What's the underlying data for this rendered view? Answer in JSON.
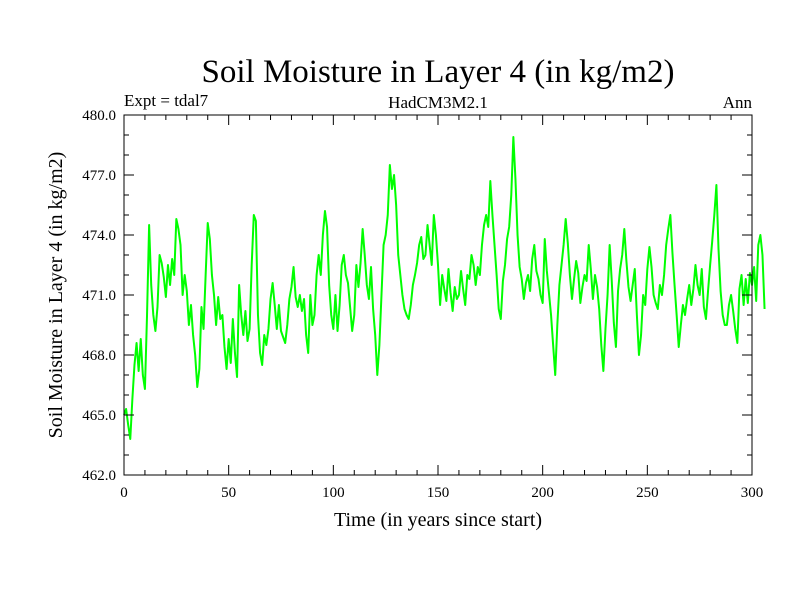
{
  "chart_data": {
    "type": "line",
    "title": "Soil Moisture in Layer 4 (in kg/m2)",
    "subtitle_left": "Expt = tdal7",
    "subtitle_center": "HadCM3M2.1",
    "subtitle_right": "Ann",
    "xlabel": "Time (in years since start)",
    "ylabel": "Soil Moisture in Layer 4 (in kg/m2)",
    "xlim": [
      0,
      300
    ],
    "ylim": [
      462.0,
      480.0
    ],
    "x_ticks": [
      0,
      50,
      100,
      150,
      200,
      250,
      300
    ],
    "x_tick_labels": [
      "0",
      "50",
      "100",
      "150",
      "200",
      "250",
      "300"
    ],
    "y_ticks": [
      462.0,
      465.0,
      468.0,
      471.0,
      474.0,
      477.0,
      480.0
    ],
    "y_tick_labels": [
      "462.0",
      "465.0",
      "468.0",
      "471.0",
      "474.0",
      "477.0",
      "480.0"
    ],
    "grid": false,
    "line_color": "#00ff00",
    "series": [
      {
        "name": "Soil Moisture Layer 4",
        "x_start": 0,
        "x_step": 1,
        "values": [
          465.0,
          465.3,
          464.5,
          463.8,
          465.8,
          467.5,
          468.6,
          467.2,
          468.8,
          467.0,
          466.3,
          470.0,
          474.5,
          471.5,
          470.0,
          469.2,
          470.4,
          473.0,
          472.6,
          471.9,
          470.9,
          472.5,
          471.5,
          472.8,
          472.0,
          474.8,
          474.3,
          473.5,
          471.0,
          472.0,
          471.2,
          469.5,
          470.5,
          469.0,
          468.0,
          466.4,
          467.3,
          470.4,
          469.3,
          472.0,
          474.6,
          473.8,
          472.0,
          471.0,
          469.5,
          470.9,
          469.8,
          470.0,
          468.4,
          467.3,
          468.8,
          467.6,
          469.8,
          468.1,
          466.9,
          471.5,
          470.0,
          469.0,
          470.2,
          468.7,
          469.3,
          472.5,
          475.0,
          474.7,
          470.0,
          468.1,
          467.5,
          469.0,
          468.5,
          469.3,
          470.8,
          471.6,
          470.5,
          469.3,
          470.5,
          469.2,
          468.9,
          468.6,
          469.5,
          470.8,
          471.4,
          472.4,
          470.9,
          470.4,
          471.0,
          470.2,
          470.8,
          469.0,
          468.1,
          471.0,
          469.5,
          470.0,
          472.0,
          473.0,
          472.0,
          474.0,
          475.2,
          474.4,
          471.5,
          470.0,
          469.3,
          471.0,
          469.2,
          470.5,
          472.5,
          473.0,
          472.0,
          471.6,
          470.4,
          469.2,
          470.0,
          472.5,
          471.4,
          472.6,
          474.3,
          473.0,
          471.5,
          470.8,
          472.4,
          470.3,
          469.0,
          467.0,
          468.5,
          471.0,
          473.5,
          474.0,
          475.0,
          477.5,
          476.3,
          477.0,
          475.5,
          473.0,
          472.0,
          471.0,
          470.3,
          470.0,
          469.8,
          470.5,
          471.5,
          472.0,
          472.6,
          473.5,
          473.9,
          472.8,
          473.0,
          474.5,
          473.5,
          472.5,
          475.0,
          474.0,
          472.5,
          470.5,
          472.0,
          471.3,
          470.7,
          472.3,
          471.1,
          470.2,
          471.4,
          470.8,
          471.0,
          472.2,
          471.3,
          470.5,
          472.0,
          471.8,
          473.0,
          472.5,
          471.5,
          472.4,
          472.0,
          473.5,
          474.5,
          475.0,
          474.4,
          476.7,
          475.0,
          473.5,
          472.0,
          470.3,
          469.8,
          471.7,
          472.5,
          473.8,
          474.4,
          476.0,
          478.9,
          476.8,
          474.0,
          472.4,
          471.8,
          470.8,
          471.6,
          472.0,
          471.2,
          472.8,
          473.5,
          472.2,
          471.8,
          471.0,
          470.6,
          473.8,
          472.2,
          471.1,
          470.0,
          468.5,
          467.0,
          469.5,
          471.5,
          472.5,
          473.5,
          474.8,
          473.6,
          472.0,
          470.8,
          471.8,
          472.7,
          472.1,
          470.6,
          471.4,
          472.0,
          471.7,
          473.5,
          472.3,
          470.8,
          472.0,
          471.4,
          470.3,
          468.5,
          467.2,
          469.3,
          471.0,
          473.5,
          471.7,
          469.6,
          468.4,
          471.2,
          472.3,
          473.0,
          474.3,
          472.7,
          471.4,
          470.7,
          471.5,
          472.3,
          470.0,
          468.0,
          469.0,
          471.0,
          470.5,
          472.3,
          473.4,
          472.4,
          471.0,
          470.6,
          470.3,
          471.5,
          471.0,
          472.0,
          473.5,
          474.3,
          475.0,
          473.1,
          471.5,
          470.0,
          468.4,
          469.5,
          470.5,
          470.0,
          470.8,
          471.5,
          470.5,
          471.3,
          472.5,
          471.5,
          471.0,
          472.3,
          470.4,
          469.8,
          471.2,
          472.5,
          473.7,
          475.0,
          476.5,
          473.3,
          471.2,
          470.0,
          469.5,
          469.5,
          470.5,
          471.0,
          470.2,
          469.3,
          468.6,
          471.3,
          472.0,
          470.5,
          471.8,
          470.6,
          472.1,
          471.5,
          472.4,
          470.7,
          473.5,
          474.0,
          473.0,
          470.3
        ]
      }
    ]
  }
}
